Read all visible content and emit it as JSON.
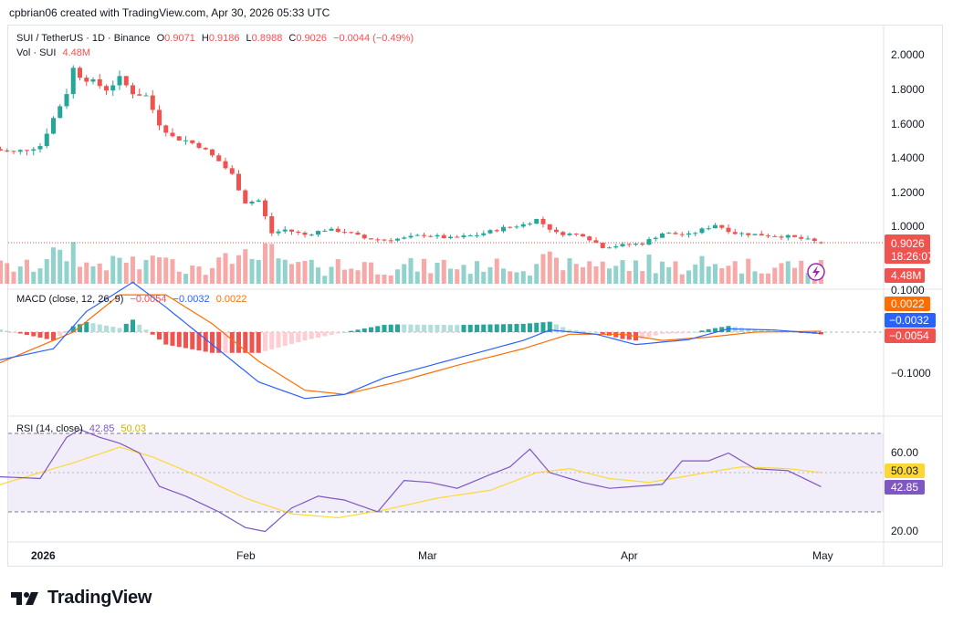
{
  "header": {
    "attribution": "cpbrian06 created with TradingView.com, Apr 30, 2026 05:33 UTC"
  },
  "legend_price": {
    "symbol": "SUI / TetherUS · 1D · Binance",
    "o_label": "O",
    "o": "0.9071",
    "h_label": "H",
    "h": "0.9186",
    "l_label": "L",
    "l": "0.8988",
    "c_label": "C",
    "c": "0.9026",
    "change": "−0.0044 (−0.49%)"
  },
  "legend_vol": {
    "label": "Vol · SUI",
    "value": "4.48M"
  },
  "legend_macd": {
    "label": "MACD (close, 12, 26, 9)",
    "hist": "−0.0054",
    "macd": "−0.0032",
    "signal": "0.0022"
  },
  "legend_rsi": {
    "label": "RSI (14, close)",
    "rsi": "42.85",
    "ma": "50.03"
  },
  "price_axis": {
    "ticks": [
      "2.0000",
      "1.8000",
      "1.6000",
      "1.4000",
      "1.2000",
      "1.0000"
    ],
    "last_price": "0.9026",
    "countdown": "18:26:07",
    "volume_tag": "4.48M"
  },
  "macd_axis": {
    "ticks": [
      "0.1000",
      "−0.1000"
    ],
    "signal_tag": "0.0022",
    "macd_tag": "−0.0032",
    "hist_tag": "−0.0054"
  },
  "rsi_axis": {
    "ticks": [
      "60.00",
      "20.00"
    ],
    "ma_tag": "50.03",
    "rsi_tag": "42.85"
  },
  "time_axis": {
    "labels": [
      "2026",
      "Feb",
      "Mar",
      "Apr",
      "May"
    ]
  },
  "footer": {
    "brand": "TradingView"
  },
  "colors": {
    "up": "#26a69a",
    "down": "#ef5350",
    "macd": "#2962ff",
    "signal": "#ff6d00",
    "rsi": "#7e57c2",
    "rsi_ma": "#fdd835"
  },
  "chart_data": [
    {
      "type": "candlestick",
      "title": "SUI / TetherUS · 1D · Binance",
      "ylim": [
        0.8,
        2.1
      ],
      "x_range": [
        "2025-12-25",
        "2026-04-29"
      ],
      "close_path": [
        [
          "2025-12-25",
          1.45
        ],
        [
          "2025-12-28",
          1.43
        ],
        [
          "2026-01-01",
          1.47
        ],
        [
          "2026-01-03",
          1.63
        ],
        [
          "2026-01-05",
          1.78
        ],
        [
          "2026-01-06",
          1.92
        ],
        [
          "2026-01-07",
          1.88
        ],
        [
          "2026-01-09",
          1.84
        ],
        [
          "2026-01-11",
          1.8
        ],
        [
          "2026-01-13",
          1.86
        ],
        [
          "2026-01-15",
          1.78
        ],
        [
          "2026-01-17",
          1.76
        ],
        [
          "2026-01-19",
          1.6
        ],
        [
          "2026-01-21",
          1.52
        ],
        [
          "2026-01-23",
          1.5
        ],
        [
          "2026-01-25",
          1.47
        ],
        [
          "2026-01-28",
          1.38
        ],
        [
          "2026-01-30",
          1.3
        ],
        [
          "2026-02-01",
          1.14
        ],
        [
          "2026-02-03",
          1.15
        ],
        [
          "2026-02-05",
          0.96
        ],
        [
          "2026-02-07",
          0.98
        ],
        [
          "2026-02-10",
          0.95
        ],
        [
          "2026-02-13",
          0.98
        ],
        [
          "2026-02-16",
          0.97
        ],
        [
          "2026-02-19",
          0.93
        ],
        [
          "2026-02-22",
          0.92
        ],
        [
          "2026-02-25",
          0.93
        ],
        [
          "2026-02-28",
          0.95
        ],
        [
          "2026-03-04",
          0.93
        ],
        [
          "2026-03-08",
          0.95
        ],
        [
          "2026-03-12",
          0.99
        ],
        [
          "2026-03-15",
          1.01
        ],
        [
          "2026-03-17",
          1.04
        ],
        [
          "2026-03-20",
          0.96
        ],
        [
          "2026-03-24",
          0.95
        ],
        [
          "2026-03-27",
          0.88
        ],
        [
          "2026-03-30",
          0.89
        ],
        [
          "2026-04-02",
          0.9
        ],
        [
          "2026-04-05",
          0.96
        ],
        [
          "2026-04-09",
          0.95
        ],
        [
          "2026-04-13",
          1.01
        ],
        [
          "2026-04-16",
          0.96
        ],
        [
          "2026-04-20",
          0.95
        ],
        [
          "2026-04-24",
          0.94
        ],
        [
          "2026-04-27",
          0.92
        ],
        [
          "2026-04-29",
          0.9026
        ]
      ],
      "last_ohlc": {
        "open": 0.9071,
        "high": 0.9186,
        "low": 0.8988,
        "close": 0.9026
      },
      "volume_last": "4.48M"
    },
    {
      "type": "line",
      "title": "MACD (close, 12, 26, 9)",
      "ylim": [
        -0.18,
        0.16
      ],
      "series": [
        {
          "name": "MACD",
          "points": [
            [
              "2025-12-25",
              -0.07
            ],
            [
              "2026-01-03",
              -0.04
            ],
            [
              "2026-01-08",
              0.05
            ],
            [
              "2026-01-15",
              0.12
            ],
            [
              "2026-01-20",
              0.06
            ],
            [
              "2026-01-27",
              -0.03
            ],
            [
              "2026-02-03",
              -0.12
            ],
            [
              "2026-02-10",
              -0.16
            ],
            [
              "2026-02-16",
              -0.15
            ],
            [
              "2026-02-22",
              -0.11
            ],
            [
              "2026-03-01",
              -0.08
            ],
            [
              "2026-03-08",
              -0.05
            ],
            [
              "2026-03-15",
              -0.02
            ],
            [
              "2026-03-19",
              0.005
            ],
            [
              "2026-03-26",
              -0.005
            ],
            [
              "2026-04-01",
              -0.03
            ],
            [
              "2026-04-09",
              -0.018
            ],
            [
              "2026-04-15",
              0.008
            ],
            [
              "2026-04-22",
              0.005
            ],
            [
              "2026-04-29",
              -0.0032
            ]
          ]
        },
        {
          "name": "Signal",
          "points": [
            [
              "2025-12-25",
              -0.08
            ],
            [
              "2026-01-06",
              0.0
            ],
            [
              "2026-01-13",
              0.09
            ],
            [
              "2026-01-20",
              0.09
            ],
            [
              "2026-01-27",
              0.02
            ],
            [
              "2026-02-03",
              -0.07
            ],
            [
              "2026-02-10",
              -0.14
            ],
            [
              "2026-02-16",
              -0.15
            ],
            [
              "2026-02-24",
              -0.12
            ],
            [
              "2026-03-05",
              -0.08
            ],
            [
              "2026-03-15",
              -0.04
            ],
            [
              "2026-03-22",
              -0.005
            ],
            [
              "2026-03-30",
              -0.005
            ],
            [
              "2026-04-05",
              -0.02
            ],
            [
              "2026-04-12",
              -0.012
            ],
            [
              "2026-04-19",
              0.0
            ],
            [
              "2026-04-29",
              0.0022
            ]
          ]
        }
      ],
      "histogram_last": -0.0054
    },
    {
      "type": "line",
      "title": "RSI (14, close)",
      "ylim": [
        15,
        75
      ],
      "bands": [
        30,
        70
      ],
      "series": [
        {
          "name": "RSI",
          "points": [
            [
              "2025-12-25",
              48
            ],
            [
              "2026-01-01",
              47
            ],
            [
              "2026-01-05",
              68
            ],
            [
              "2026-01-07",
              72
            ],
            [
              "2026-01-10",
              68
            ],
            [
              "2026-01-13",
              65
            ],
            [
              "2026-01-16",
              60
            ],
            [
              "2026-01-19",
              43
            ],
            [
              "2026-01-23",
              38
            ],
            [
              "2026-01-28",
              30
            ],
            [
              "2026-02-01",
              22
            ],
            [
              "2026-02-04",
              20
            ],
            [
              "2026-02-08",
              32
            ],
            [
              "2026-02-12",
              38
            ],
            [
              "2026-02-16",
              36
            ],
            [
              "2026-02-21",
              30
            ],
            [
              "2026-02-25",
              46
            ],
            [
              "2026-03-01",
              45
            ],
            [
              "2026-03-05",
              42
            ],
            [
              "2026-03-10",
              49
            ],
            [
              "2026-03-13",
              53
            ],
            [
              "2026-03-16",
              62
            ],
            [
              "2026-03-19",
              50
            ],
            [
              "2026-03-24",
              45
            ],
            [
              "2026-03-28",
              42
            ],
            [
              "2026-04-01",
              43
            ],
            [
              "2026-04-05",
              44
            ],
            [
              "2026-04-08",
              56
            ],
            [
              "2026-04-12",
              56
            ],
            [
              "2026-04-15",
              60
            ],
            [
              "2026-04-19",
              52
            ],
            [
              "2026-04-24",
              51
            ],
            [
              "2026-04-29",
              42.85
            ]
          ]
        },
        {
          "name": "RSI MA",
          "points": [
            [
              "2025-12-25",
              43
            ],
            [
              "2026-01-06",
              55
            ],
            [
              "2026-01-13",
              63
            ],
            [
              "2026-01-18",
              58
            ],
            [
              "2026-01-25",
              48
            ],
            [
              "2026-02-01",
              37
            ],
            [
              "2026-02-08",
              29
            ],
            [
              "2026-02-15",
              27
            ],
            [
              "2026-02-22",
              31
            ],
            [
              "2026-03-02",
              37
            ],
            [
              "2026-03-10",
              41
            ],
            [
              "2026-03-17",
              50
            ],
            [
              "2026-03-22",
              52
            ],
            [
              "2026-03-28",
              47
            ],
            [
              "2026-04-03",
              45
            ],
            [
              "2026-04-10",
              49
            ],
            [
              "2026-04-17",
              53
            ],
            [
              "2026-04-24",
              52
            ],
            [
              "2026-04-29",
              50.03
            ]
          ]
        }
      ]
    }
  ]
}
